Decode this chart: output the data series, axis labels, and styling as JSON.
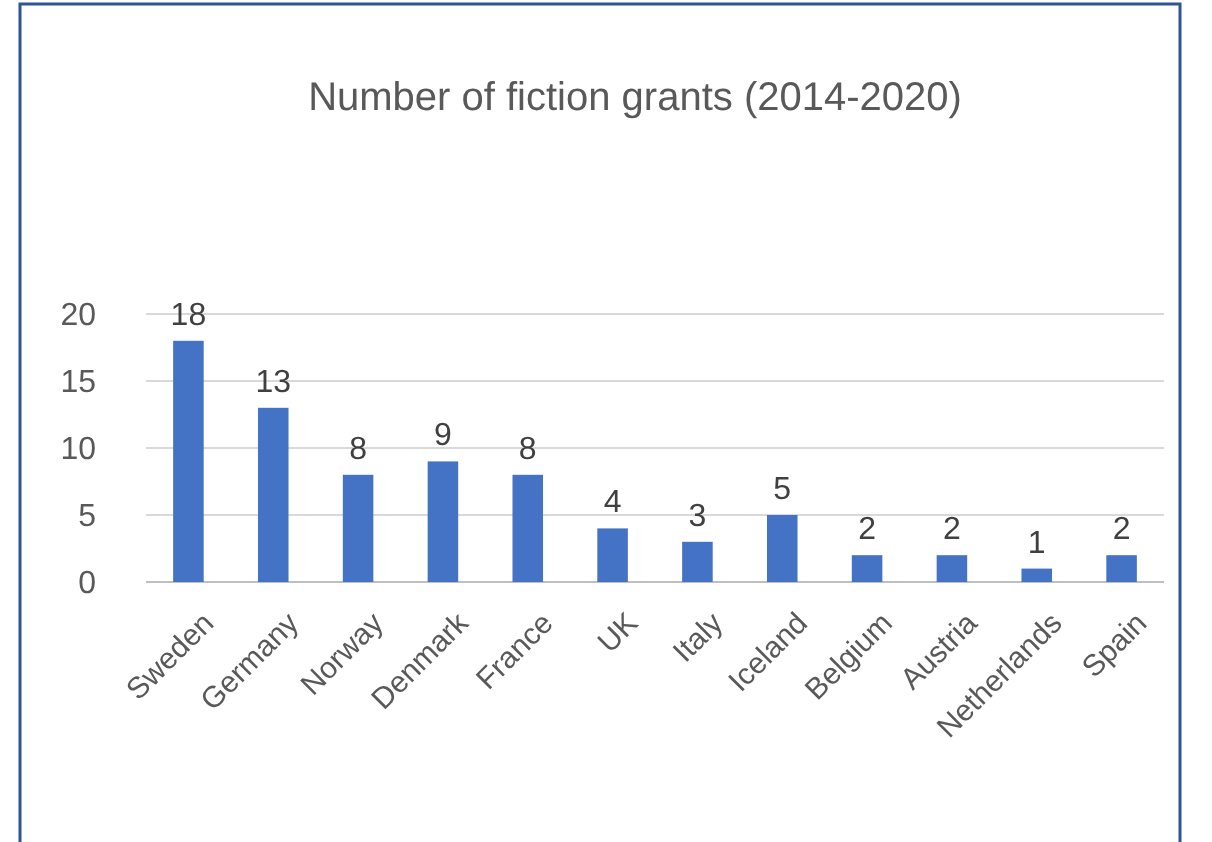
{
  "chart_data": {
    "type": "bar",
    "title": "Number of fiction grants (2014-2020)",
    "categories": [
      "Sweden",
      "Germany",
      "Norway",
      "Denmark",
      "France",
      "UK",
      "Italy",
      "Iceland",
      "Belgium",
      "Austria",
      "Netherlands",
      "Spain"
    ],
    "values": [
      18,
      13,
      8,
      9,
      8,
      4,
      3,
      5,
      2,
      2,
      1,
      2
    ],
    "color": "#4472c4",
    "ylim": [
      0,
      20
    ],
    "yticks": [
      0,
      5,
      10,
      15,
      20
    ],
    "grid": "y",
    "data_labels": true
  }
}
